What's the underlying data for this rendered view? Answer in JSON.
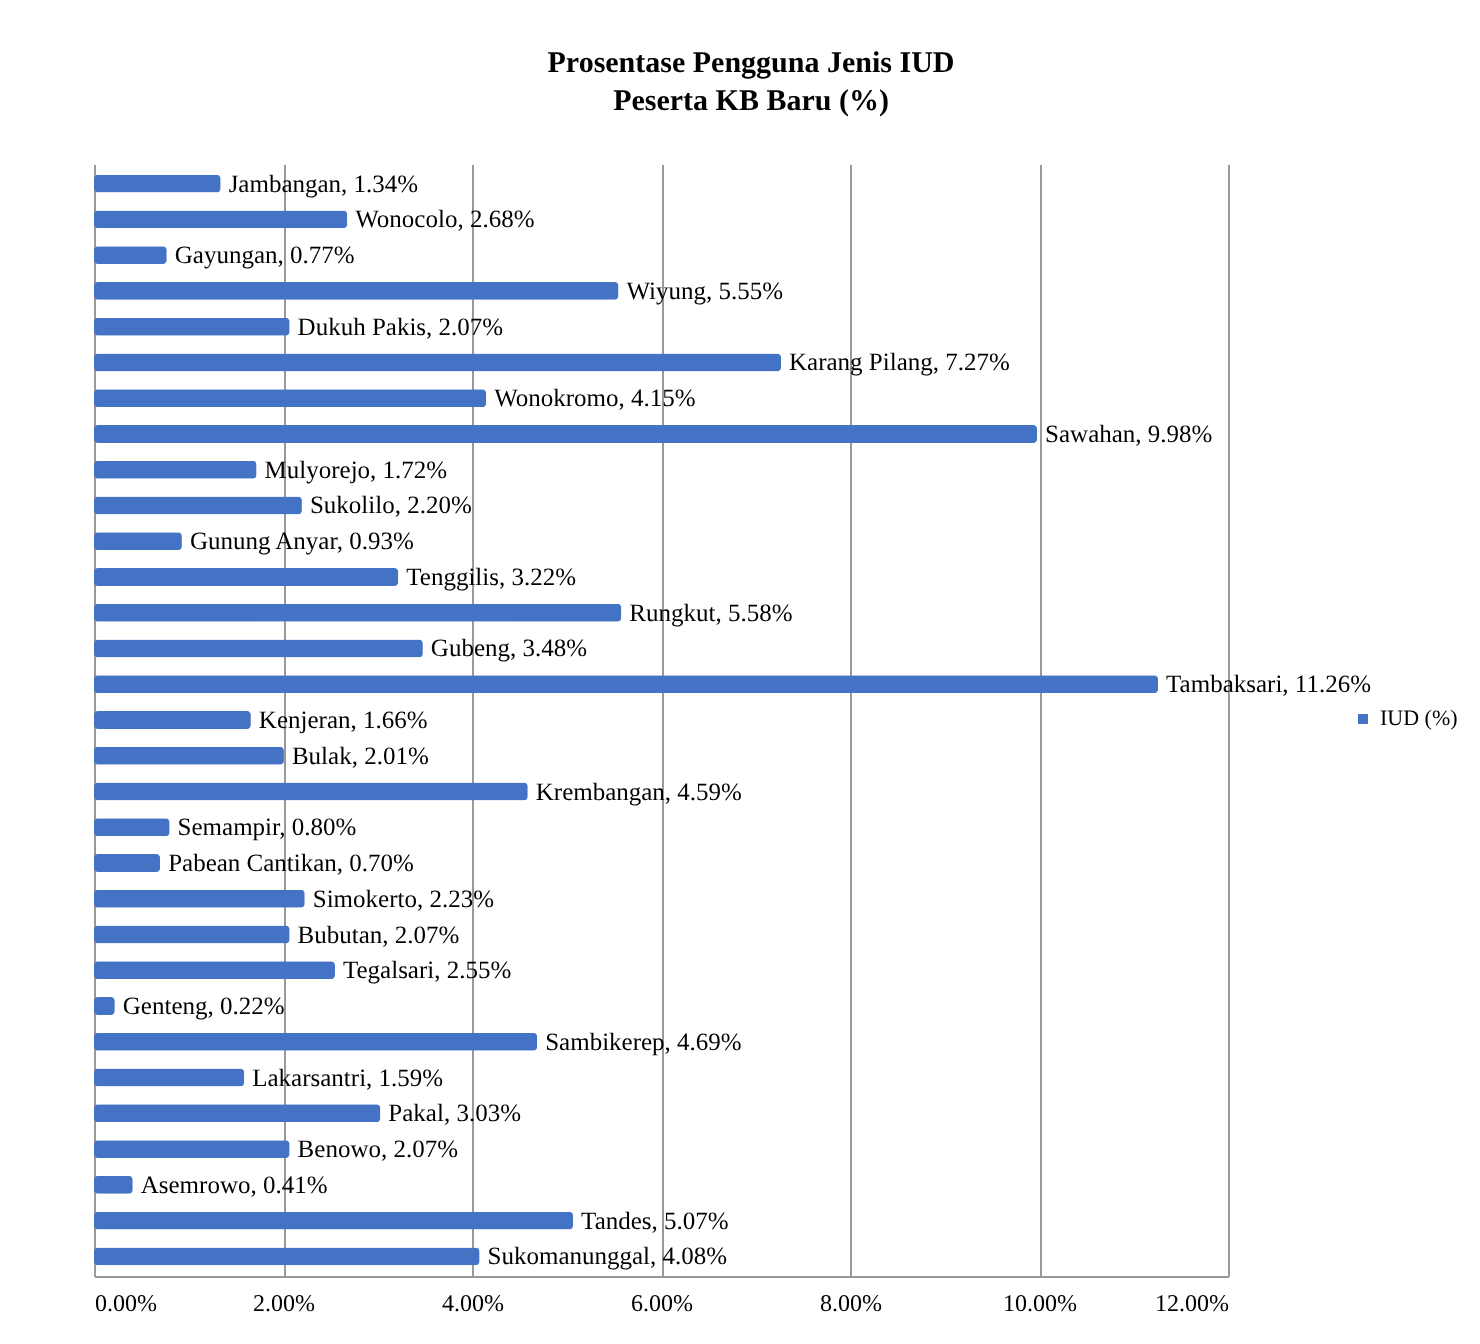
{
  "chart_data": {
    "type": "bar",
    "orientation": "horizontal",
    "title": "Prosentase Pengguna Jenis IUD\nPeserta KB Baru (%)",
    "categories": [
      null,
      null,
      null,
      null,
      null,
      null,
      null,
      null,
      null,
      null,
      null,
      null,
      null,
      null,
      null,
      null,
      null,
      null,
      null,
      null,
      null,
      null,
      null,
      null,
      null,
      null,
      null,
      null,
      null,
      null,
      null
    ],
    "series": [
      {
        "name": "IUD (%)",
        "color": "#4472c4",
        "values": [
          1.34,
          2.68,
          0.77,
          5.55,
          2.07,
          7.27,
          4.15,
          9.98,
          1.72,
          2.2,
          0.93,
          3.22,
          5.58,
          3.48,
          11.26,
          1.66,
          2.01,
          4.59,
          0.8,
          0.7,
          2.23,
          2.07,
          2.55,
          0.22,
          4.69,
          1.59,
          3.03,
          2.07,
          0.41,
          5.07,
          4.08
        ],
        "value_labels": [
          "Jambangan, 1.34%",
          "Wonocolo, 2.68%",
          "Gayungan, 0.77%",
          "Wiyung, 5.55%",
          "Dukuh Pakis, 2.07%",
          "Karang Pilang, 7.27%",
          "Wonokromo, 4.15%",
          "Sawahan, 9.98%",
          "Mulyorejo, 1.72%",
          "Sukolilo, 2.20%",
          "Gunung Anyar, 0.93%",
          "Tenggilis, 3.22%",
          "Rungkut, 5.58%",
          "Gubeng, 3.48%",
          "Tambaksari, 11.26%",
          "Kenjeran, 1.66%",
          "Bulak, 2.01%",
          "Krembangan, 4.59%",
          "Semampir, 0.80%",
          "Pabean Cantikan, 0.70%",
          "Simokerto, 2.23%",
          "Bubutan, 2.07%",
          "Tegalsari, 2.55%",
          "Genteng, 0.22%",
          "Sambikerep, 4.69%",
          "Lakarsantri, 1.59%",
          "Pakal, 3.03%",
          "Benowo, 2.07%",
          "Asemrowo, 0.41%",
          "Tandes, 5.07%",
          "Sukomanunggal, 4.08%"
        ]
      }
    ],
    "xlim": [
      0,
      12
    ],
    "xticks": [
      {
        "value": 0,
        "label": "0.00%"
      },
      {
        "value": 2,
        "label": "2.00%"
      },
      {
        "value": 4,
        "label": "4.00%"
      },
      {
        "value": 6,
        "label": "6.00%"
      },
      {
        "value": 8,
        "label": "8.00%"
      },
      {
        "value": 10,
        "label": "10.00%"
      },
      {
        "value": 12,
        "label": "12.00%"
      }
    ],
    "tick_labels": "x",
    "grid": "x",
    "legend": "right"
  }
}
